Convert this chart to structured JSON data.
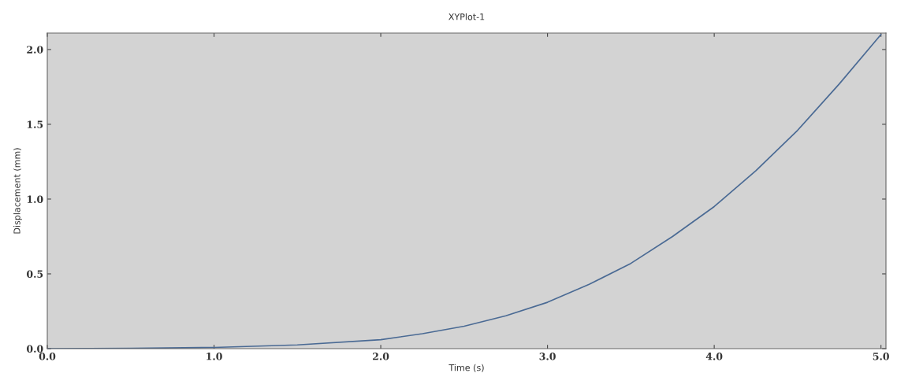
{
  "chart_data": {
    "type": "line",
    "title": "XYPlot-1",
    "xlabel": "Time (s)",
    "ylabel": "Displacement (mm)",
    "x": [
      0,
      0.5,
      1.0,
      1.5,
      2.0,
      2.25,
      2.5,
      2.75,
      3.0,
      3.25,
      3.5,
      3.75,
      4.0,
      4.25,
      4.5,
      4.75,
      5.0
    ],
    "series": [
      {
        "color": "#4a6a94",
        "values": [
          0,
          0.002,
          0.008,
          0.025,
          0.06,
          0.1,
          0.15,
          0.22,
          0.31,
          0.43,
          0.57,
          0.75,
          0.95,
          1.19,
          1.46,
          1.77,
          2.1
        ]
      }
    ],
    "xlim": [
      0,
      5.03
    ],
    "ylim": [
      0,
      2.11
    ],
    "xticks": [
      {
        "value": 0,
        "label": "0.0"
      },
      {
        "value": 1,
        "label": "1.0"
      },
      {
        "value": 2,
        "label": "2.0"
      },
      {
        "value": 3,
        "label": "3.0"
      },
      {
        "value": 4,
        "label": "4.0"
      },
      {
        "value": 5,
        "label": "5.0"
      }
    ],
    "yticks": [
      {
        "value": 0,
        "label": "0.0"
      },
      {
        "value": 0.5,
        "label": "0.5"
      },
      {
        "value": 1,
        "label": "1.0"
      },
      {
        "value": 1.5,
        "label": "1.5"
      },
      {
        "value": 2,
        "label": "2.0"
      }
    ],
    "grid": false
  }
}
